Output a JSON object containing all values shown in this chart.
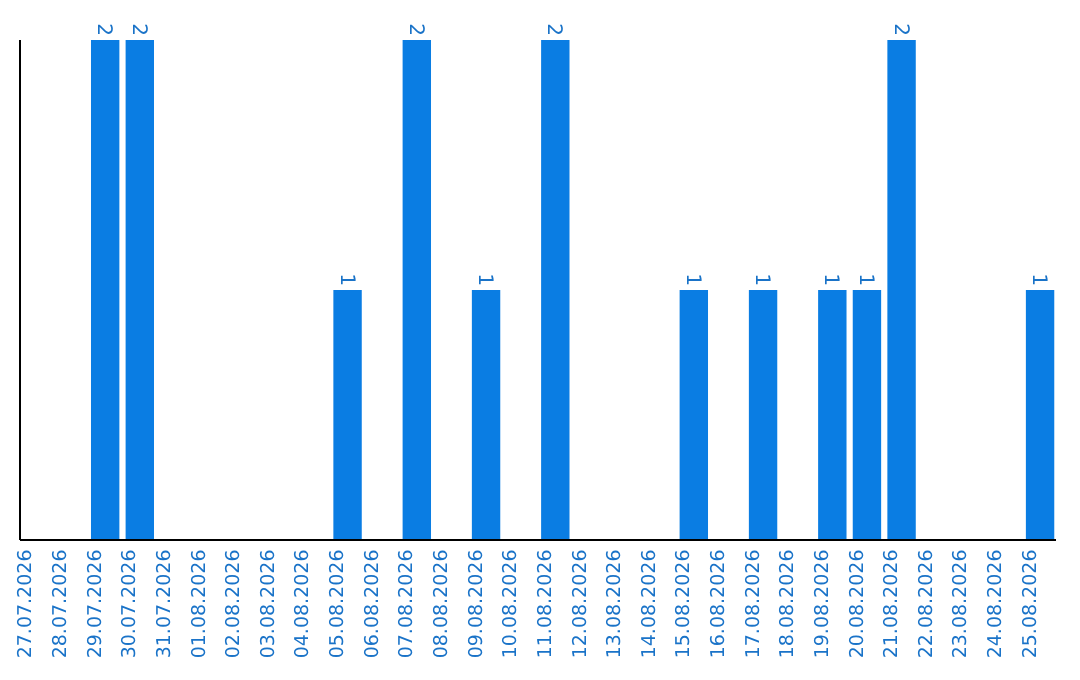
{
  "chart_data": {
    "type": "bar",
    "categories": [
      "27.07.2026",
      "28.07.2026",
      "29.07.2026",
      "30.07.2026",
      "31.07.2026",
      "01.08.2026",
      "02.08.2026",
      "03.08.2026",
      "04.08.2026",
      "05.08.2026",
      "06.08.2026",
      "07.08.2026",
      "08.08.2026",
      "09.08.2026",
      "10.08.2026",
      "11.08.2026",
      "12.08.2026",
      "13.08.2026",
      "14.08.2026",
      "15.08.2026",
      "16.08.2026",
      "17.08.2026",
      "18.08.2026",
      "19.08.2026",
      "20.08.2026",
      "21.08.2026",
      "22.08.2026",
      "23.08.2026",
      "24.08.2026",
      "25.08.2026"
    ],
    "values": [
      0,
      0,
      2,
      2,
      0,
      0,
      0,
      0,
      0,
      1,
      0,
      2,
      0,
      1,
      0,
      2,
      0,
      0,
      0,
      1,
      0,
      1,
      0,
      1,
      1,
      2,
      0,
      0,
      0,
      1
    ],
    "value_labels": [
      null,
      null,
      "2",
      "2",
      null,
      null,
      null,
      null,
      null,
      "1",
      null,
      "2",
      null,
      "1",
      null,
      "2",
      null,
      null,
      null,
      "1",
      null,
      "1",
      null,
      "1",
      "1",
      "2",
      null,
      null,
      null,
      "1"
    ],
    "color": "#0a7de3",
    "ylim": [
      0,
      2
    ],
    "tick_labels": "x"
  }
}
